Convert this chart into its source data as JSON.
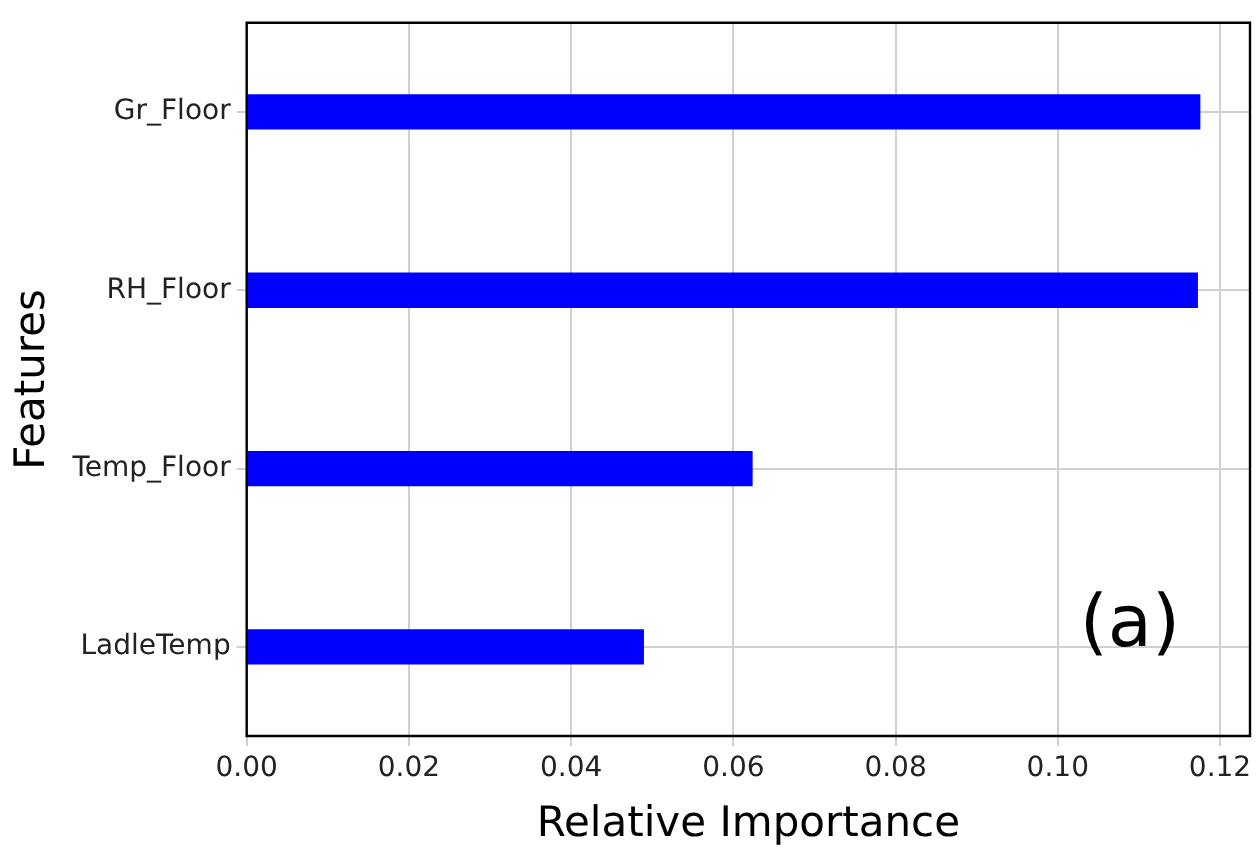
{
  "chart_data": {
    "type": "bar",
    "orientation": "horizontal",
    "categories": [
      "Gr_Floor",
      "RH_Floor",
      "Temp_Floor",
      "LadleTemp"
    ],
    "values": [
      0.1175,
      0.1172,
      0.0623,
      0.0489
    ],
    "color": "#0000ff",
    "xlim": [
      0,
      0.1237
    ],
    "xticks": [
      {
        "value": 0,
        "label": "0.00"
      },
      {
        "value": 0.02,
        "label": "0.02"
      },
      {
        "value": 0.04,
        "label": "0.04"
      },
      {
        "value": 0.06,
        "label": "0.06"
      },
      {
        "value": 0.08,
        "label": "0.08"
      },
      {
        "value": 0.1,
        "label": "0.10"
      },
      {
        "value": 0.12,
        "label": "0.12"
      }
    ],
    "xlabel": "Relative Importance",
    "ylabel": "Features",
    "annotations": [
      "(a)"
    ],
    "grid": true,
    "legend": false
  }
}
